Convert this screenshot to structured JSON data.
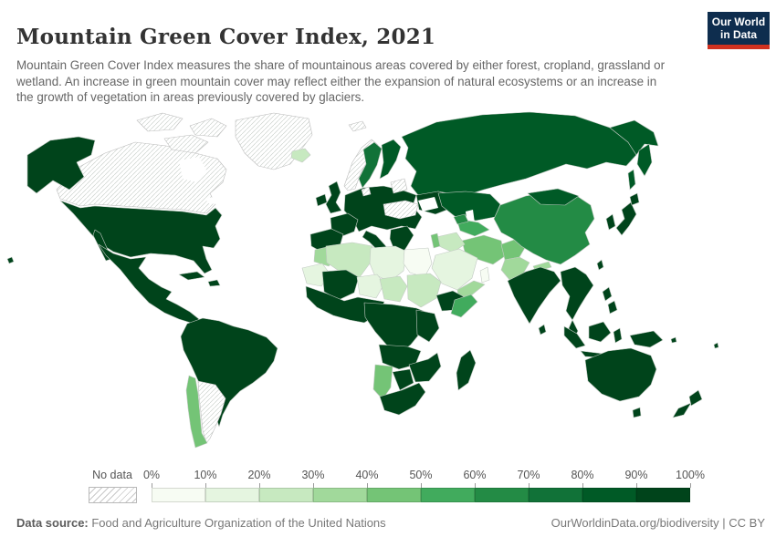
{
  "header": {
    "title": "Mountain Green Cover Index, 2021",
    "subtitle": "Mountain Green Cover Index measures the share of mountainous areas covered by either forest, cropland, grassland or wetland. An increase in green mountain cover may reflect either the expansion of natural ecosystems or an increase in the growth of vegetation in areas previously covered by glaciers.",
    "logo": {
      "line1": "Our World",
      "line2": "in Data",
      "bg_color": "#0e2d4e",
      "accent_color": "#d0311f"
    }
  },
  "legend": {
    "no_data_label": "No data",
    "tick_labels": [
      "0%",
      "10%",
      "20%",
      "30%",
      "40%",
      "50%",
      "60%",
      "70%",
      "80%",
      "90%",
      "100%"
    ],
    "buckets": [
      "0-10",
      "10-20",
      "20-30",
      "30-40",
      "40-50",
      "50-60",
      "60-70",
      "70-80",
      "80-90",
      "90-100"
    ],
    "colors": [
      "#f7fcf3",
      "#e5f5e0",
      "#c7e9c0",
      "#a1d99b",
      "#74c476",
      "#41ab5d",
      "#238b45",
      "#117238",
      "#005a26",
      "#00441b"
    ]
  },
  "footer": {
    "source_label": "Data source:",
    "source_text": " Food and Agriculture Organization of the United Nations",
    "link_text": "OurWorldinData.org/biodiversity | CC BY"
  },
  "chart_data": {
    "type": "choropleth_map",
    "title": "Mountain Green Cover Index, 2021",
    "year": 2021,
    "unit": "%",
    "color_scale": {
      "min": 0,
      "max": 100,
      "step": 10,
      "no_data": "hatched"
    },
    "regions": [
      {
        "id": "canada",
        "name": "Canada",
        "bucket": "no-data"
      },
      {
        "id": "greenland",
        "name": "Greenland",
        "bucket": "no-data"
      },
      {
        "id": "argentina",
        "name": "Argentina",
        "bucket": "no-data"
      },
      {
        "id": "norway",
        "name": "Norway",
        "bucket": "no-data"
      },
      {
        "id": "svalbard",
        "name": "Svalbard",
        "bucket": "no-data"
      },
      {
        "id": "denmark",
        "name": "Denmark",
        "bucket": "no-data"
      },
      {
        "id": "baltic",
        "name": "Baltic states",
        "bucket": "no-data"
      },
      {
        "id": "turkey",
        "name": "Turkey",
        "bucket": "no-data"
      },
      {
        "id": "usa",
        "name": "United States",
        "bucket": "90-100"
      },
      {
        "id": "mexico",
        "name": "Mexico & Central America",
        "bucket": "90-100"
      },
      {
        "id": "cuba",
        "name": "Cuba",
        "bucket": "90-100"
      },
      {
        "id": "hispaniola",
        "name": "Hispaniola",
        "bucket": "90-100"
      },
      {
        "id": "hawaii",
        "name": "Hawaii",
        "bucket": "90-100"
      },
      {
        "id": "south-america",
        "name": "Brazil & Andean states",
        "bucket": "90-100"
      },
      {
        "id": "chile",
        "name": "Chile",
        "bucket": "40-50"
      },
      {
        "id": "iceland",
        "name": "Iceland",
        "bucket": "20-30"
      },
      {
        "id": "ireland",
        "name": "Ireland",
        "bucket": "90-100"
      },
      {
        "id": "uk",
        "name": "United Kingdom",
        "bucket": "90-100"
      },
      {
        "id": "france",
        "name": "France",
        "bucket": "90-100"
      },
      {
        "id": "iberia",
        "name": "Spain & Portugal",
        "bucket": "90-100"
      },
      {
        "id": "europe",
        "name": "Central Europe",
        "bucket": "90-100"
      },
      {
        "id": "italy",
        "name": "Italy",
        "bucket": "90-100"
      },
      {
        "id": "balkans",
        "name": "Balkans & Greece",
        "bucket": "90-100"
      },
      {
        "id": "ukraine",
        "name": "Ukraine",
        "bucket": "90-100"
      },
      {
        "id": "sweden",
        "name": "Sweden",
        "bucket": "70-80"
      },
      {
        "id": "finland",
        "name": "Finland",
        "bucket": "80-90"
      },
      {
        "id": "russia",
        "name": "Russia",
        "bucket": "80-90"
      },
      {
        "id": "kazakhstan",
        "name": "Kazakhstan",
        "bucket": "80-90"
      },
      {
        "id": "central-asia",
        "name": "Uzbekistan & Turkmenistan",
        "bucket": "50-60"
      },
      {
        "id": "caucasus",
        "name": "Caucasus",
        "bucket": "60-70"
      },
      {
        "id": "china",
        "name": "China",
        "bucket": "60-70"
      },
      {
        "id": "mongolia",
        "name": "Mongolia",
        "bucket": "80-90"
      },
      {
        "id": "india",
        "name": "India",
        "bucket": "90-100"
      },
      {
        "id": "nepal",
        "name": "Nepal",
        "bucket": "30-40"
      },
      {
        "id": "pakistan",
        "name": "Pakistan",
        "bucket": "30-40"
      },
      {
        "id": "afghanistan",
        "name": "Afghanistan",
        "bucket": "40-50"
      },
      {
        "id": "iran",
        "name": "Iran",
        "bucket": "40-50"
      },
      {
        "id": "iraq",
        "name": "Iraq & Syria",
        "bucket": "20-30"
      },
      {
        "id": "levant",
        "name": "Levant",
        "bucket": "40-50"
      },
      {
        "id": "saudi",
        "name": "Saudi Arabia",
        "bucket": "10-20"
      },
      {
        "id": "yemen",
        "name": "Yemen",
        "bucket": "30-40"
      },
      {
        "id": "oman",
        "name": "Oman",
        "bucket": "0-10"
      },
      {
        "id": "morocco",
        "name": "Morocco",
        "bucket": "30-40"
      },
      {
        "id": "algeria",
        "name": "Algeria",
        "bucket": "20-30"
      },
      {
        "id": "libya",
        "name": "Libya",
        "bucket": "10-20"
      },
      {
        "id": "egypt",
        "name": "Egypt",
        "bucket": "0-10"
      },
      {
        "id": "mauritania",
        "name": "Mauritania",
        "bucket": "10-20"
      },
      {
        "id": "mali",
        "name": "Mali",
        "bucket": "90-100"
      },
      {
        "id": "niger",
        "name": "Niger",
        "bucket": "10-20"
      },
      {
        "id": "chad",
        "name": "Chad",
        "bucket": "20-30"
      },
      {
        "id": "sudan",
        "name": "Sudan",
        "bucket": "20-30"
      },
      {
        "id": "ethiopia",
        "name": "Ethiopia",
        "bucket": "90-100"
      },
      {
        "id": "somalia",
        "name": "Somalia",
        "bucket": "50-60"
      },
      {
        "id": "west-africa",
        "name": "West Africa",
        "bucket": "90-100"
      },
      {
        "id": "central-africa",
        "name": "Central Africa",
        "bucket": "90-100"
      },
      {
        "id": "east-africa",
        "name": "East Africa",
        "bucket": "90-100"
      },
      {
        "id": "angola",
        "name": "Angola & Zambia",
        "bucket": "90-100"
      },
      {
        "id": "zimbabwe",
        "name": "Zimbabwe & Mozambique",
        "bucket": "90-100"
      },
      {
        "id": "namibia",
        "name": "Namibia",
        "bucket": "40-50"
      },
      {
        "id": "botswana",
        "name": "Botswana",
        "bucket": "90-100"
      },
      {
        "id": "south-africa",
        "name": "South Africa",
        "bucket": "90-100"
      },
      {
        "id": "madagascar",
        "name": "Madagascar",
        "bucket": "90-100"
      },
      {
        "id": "se-asia",
        "name": "Southeast Asia",
        "bucket": "90-100"
      },
      {
        "id": "indonesia",
        "name": "Indonesia",
        "bucket": "90-100"
      },
      {
        "id": "png",
        "name": "Papua New Guinea",
        "bucket": "90-100"
      },
      {
        "id": "philippines",
        "name": "Philippines",
        "bucket": "90-100"
      },
      {
        "id": "taiwan",
        "name": "Taiwan",
        "bucket": "90-100"
      },
      {
        "id": "korea",
        "name": "South Korea",
        "bucket": "90-100"
      },
      {
        "id": "japan",
        "name": "Japan",
        "bucket": "90-100"
      },
      {
        "id": "sri-lanka",
        "name": "Sri Lanka",
        "bucket": "90-100"
      },
      {
        "id": "australia",
        "name": "Australia",
        "bucket": "90-100"
      },
      {
        "id": "new-zealand",
        "name": "New Zealand",
        "bucket": "90-100"
      },
      {
        "id": "pacific",
        "name": "Pacific islands",
        "bucket": "90-100"
      }
    ]
  }
}
